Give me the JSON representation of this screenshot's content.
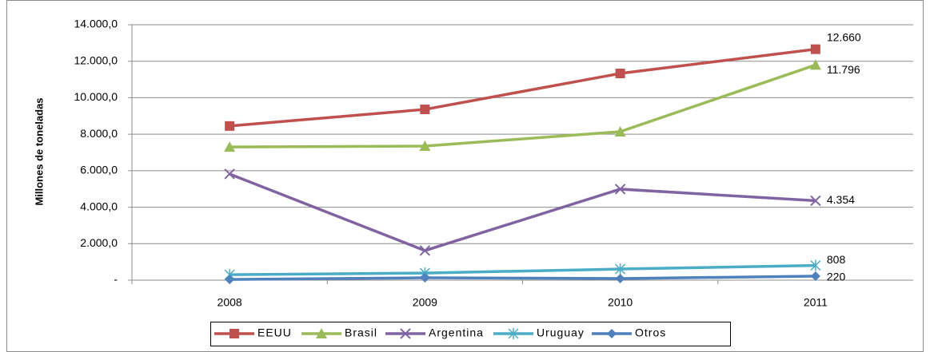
{
  "chart_data": {
    "type": "line",
    "y_label": "Millones de toneladas",
    "categories": [
      "2008",
      "2009",
      "2010",
      "2011"
    ],
    "ylim": [
      0,
      14000
    ],
    "yticks": [
      {
        "value": 0,
        "label": "-"
      },
      {
        "value": 2000,
        "label": "2.000,0"
      },
      {
        "value": 4000,
        "label": "4.000,0"
      },
      {
        "value": 6000,
        "label": "6.000,0"
      },
      {
        "value": 8000,
        "label": "8.000,0"
      },
      {
        "value": 10000,
        "label": "10.000,0"
      },
      {
        "value": 12000,
        "label": "12.000,0"
      },
      {
        "value": 14000,
        "label": "14.000,0"
      }
    ],
    "grid": true,
    "legend": "bottom",
    "series": [
      {
        "name": "EEUU",
        "color": "#c0504d",
        "marker": "square",
        "values": [
          8450,
          9360,
          11330,
          12660
        ],
        "value_labels": [
          null,
          null,
          null,
          "12.660"
        ]
      },
      {
        "name": "Brasil",
        "color": "#9bbb59",
        "marker": "triangle",
        "values": [
          7300,
          7350,
          8140,
          11796
        ],
        "value_labels": [
          null,
          null,
          null,
          "11.796"
        ]
      },
      {
        "name": "Argentina",
        "color": "#8064a2",
        "marker": "x",
        "values": [
          5820,
          1620,
          4990,
          4354
        ],
        "value_labels": [
          null,
          null,
          null,
          "4.354"
        ]
      },
      {
        "name": "Uruguay",
        "color": "#4bacc6",
        "marker": "star",
        "values": [
          300,
          390,
          610,
          808
        ],
        "value_labels": [
          null,
          null,
          null,
          "808"
        ]
      },
      {
        "name": "Otros",
        "color": "#4f81bd",
        "marker": "diamond",
        "values": [
          40,
          130,
          90,
          220
        ],
        "value_labels": [
          null,
          null,
          null,
          "220"
        ]
      }
    ]
  }
}
